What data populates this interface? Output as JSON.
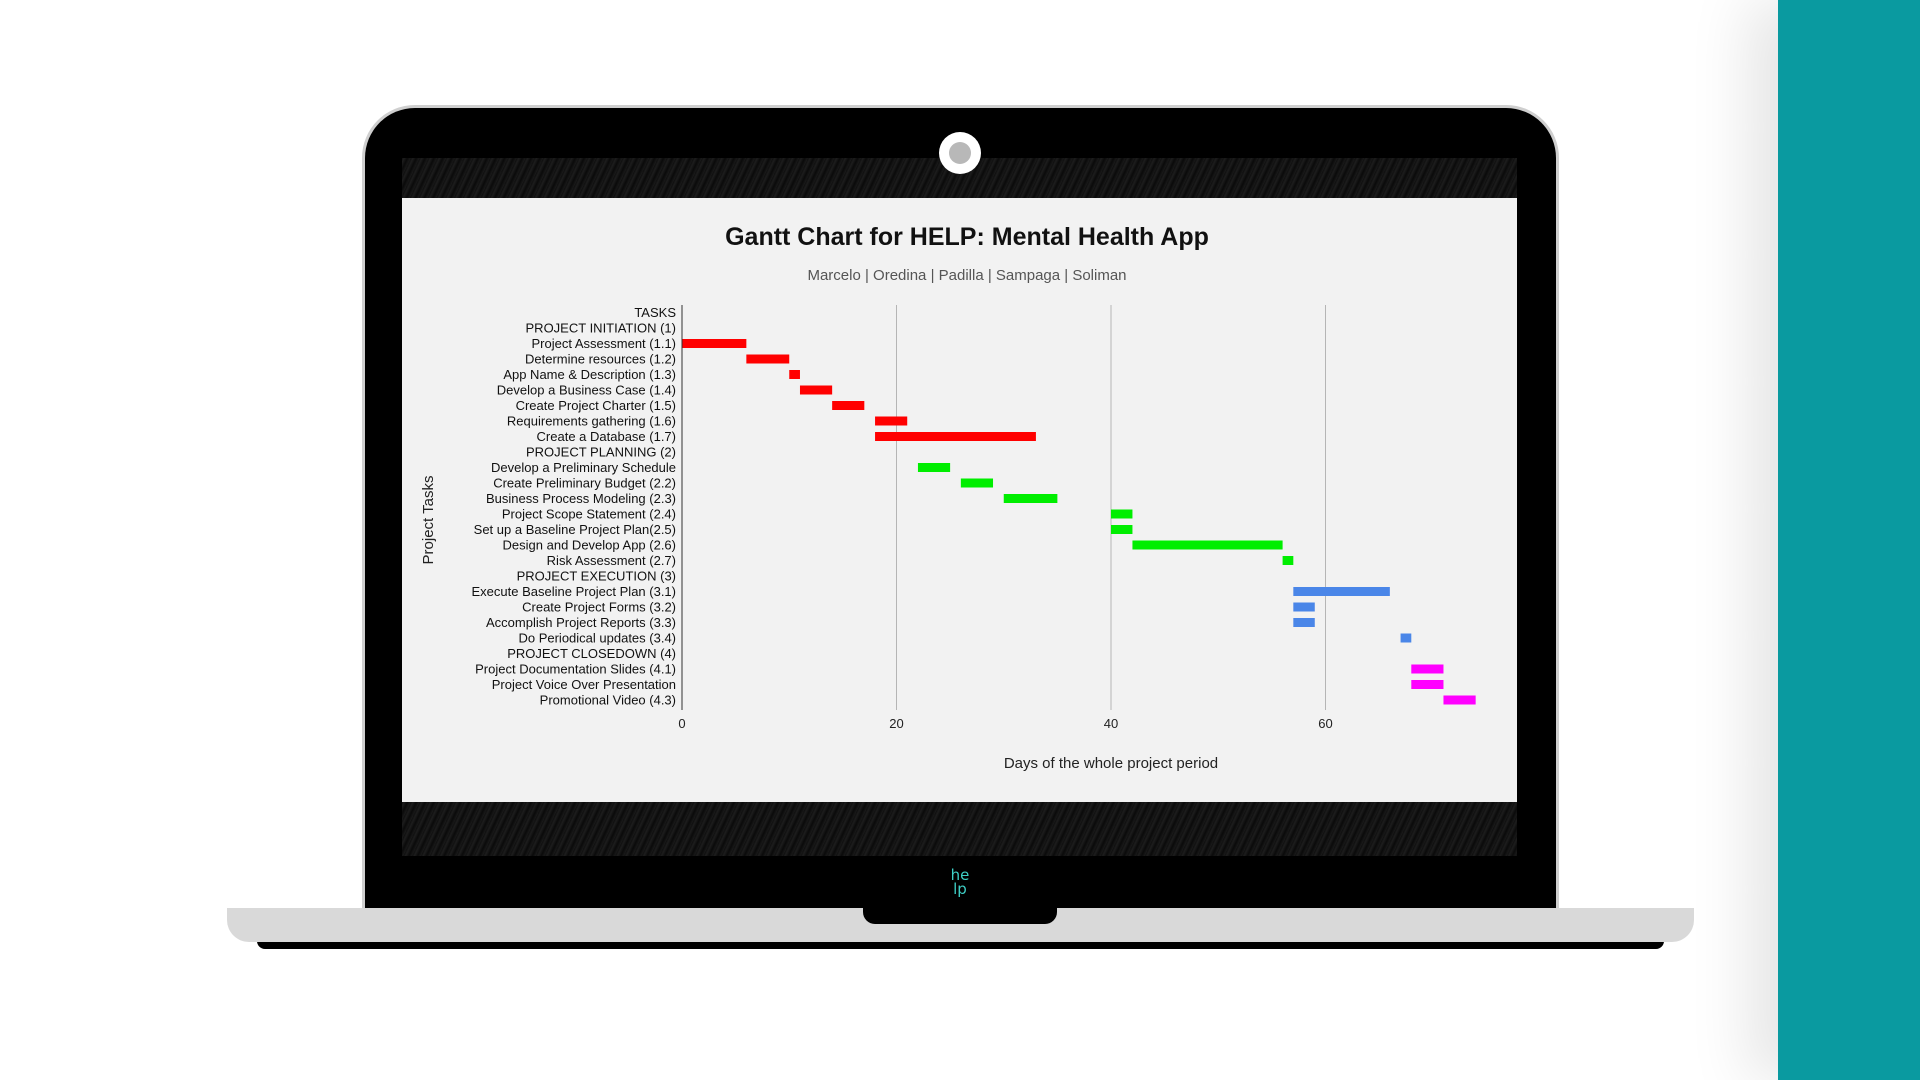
{
  "brand": {
    "logo_text": "he lp",
    "accent": "#0a9aa0"
  },
  "chart_data": {
    "type": "gantt",
    "title": "Gantt Chart for HELP: Mental Health App",
    "subtitle": "Marcelo | Oredina | Padilla | Sampaga | Soliman",
    "xlabel": "Days of the whole project period",
    "ylabel": "Project Tasks",
    "xlim": [
      0,
      74
    ],
    "xticks": [
      0,
      20,
      40,
      60
    ],
    "grid": true,
    "colors": {
      "initiation": "#ff0000",
      "planning": "#00ee00",
      "execution": "#4a86e8",
      "closedown": "#ff00ff"
    },
    "tasks": [
      {
        "label": "TASKS",
        "start": null,
        "end": null,
        "phase": null
      },
      {
        "label": "PROJECT INITIATION (1)",
        "start": null,
        "end": null,
        "phase": null
      },
      {
        "label": "Project Assessment (1.1)",
        "start": 0,
        "end": 6,
        "phase": "initiation"
      },
      {
        "label": "Determine resources (1.2)",
        "start": 6,
        "end": 10,
        "phase": "initiation"
      },
      {
        "label": "App Name & Description (1.3)",
        "start": 10,
        "end": 11,
        "phase": "initiation"
      },
      {
        "label": "Develop a Business Case (1.4)",
        "start": 11,
        "end": 14,
        "phase": "initiation"
      },
      {
        "label": "Create Project Charter (1.5)",
        "start": 14,
        "end": 17,
        "phase": "initiation"
      },
      {
        "label": "Requirements gathering (1.6)",
        "start": 18,
        "end": 21,
        "phase": "initiation"
      },
      {
        "label": "Create a Database (1.7)",
        "start": 18,
        "end": 33,
        "phase": "initiation"
      },
      {
        "label": "PROJECT PLANNING (2)",
        "start": null,
        "end": null,
        "phase": null
      },
      {
        "label": "Develop a Preliminary Schedule",
        "start": 22,
        "end": 25,
        "phase": "planning"
      },
      {
        "label": "Create Preliminary Budget (2.2)",
        "start": 26,
        "end": 29,
        "phase": "planning"
      },
      {
        "label": "Business Process Modeling (2.3)",
        "start": 30,
        "end": 35,
        "phase": "planning"
      },
      {
        "label": "Project Scope Statement (2.4)",
        "start": 40,
        "end": 42,
        "phase": "planning"
      },
      {
        "label": "Set up a Baseline Project Plan(2.5)",
        "start": 40,
        "end": 42,
        "phase": "planning"
      },
      {
        "label": "Design and Develop App (2.6)",
        "start": 42,
        "end": 56,
        "phase": "planning"
      },
      {
        "label": "Risk Assessment (2.7)",
        "start": 56,
        "end": 57,
        "phase": "planning"
      },
      {
        "label": "PROJECT EXECUTION (3)",
        "start": null,
        "end": null,
        "phase": null
      },
      {
        "label": "Execute Baseline Project Plan (3.1)",
        "start": 57,
        "end": 66,
        "phase": "execution"
      },
      {
        "label": "Create Project Forms (3.2)",
        "start": 57,
        "end": 59,
        "phase": "execution"
      },
      {
        "label": "Accomplish Project Reports (3.3)",
        "start": 57,
        "end": 59,
        "phase": "execution"
      },
      {
        "label": "Do Periodical updates (3.4)",
        "start": 67,
        "end": 68,
        "phase": "execution"
      },
      {
        "label": "PROJECT CLOSEDOWN (4)",
        "start": null,
        "end": null,
        "phase": null
      },
      {
        "label": "Project Documentation Slides (4.1)",
        "start": 68,
        "end": 71,
        "phase": "closedown"
      },
      {
        "label": "Project Voice Over Presentation",
        "start": 68,
        "end": 71,
        "phase": "closedown"
      },
      {
        "label": "Promotional Video (4.3)",
        "start": 71,
        "end": 74,
        "phase": "closedown"
      }
    ]
  }
}
